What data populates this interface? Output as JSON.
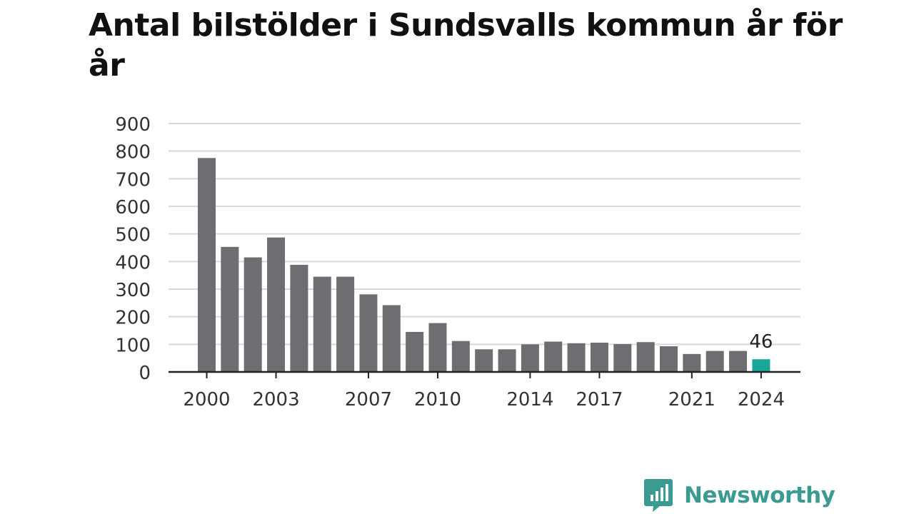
{
  "chart_data": {
    "type": "bar",
    "title": "Antal bilstölder i Sundsvalls kommun år för år",
    "xlabel": "",
    "ylabel": "",
    "categories": [
      "2000",
      "2001",
      "2002",
      "2003",
      "2004",
      "2005",
      "2006",
      "2007",
      "2008",
      "2009",
      "2010",
      "2011",
      "2012",
      "2013",
      "2014",
      "2015",
      "2016",
      "2017",
      "2018",
      "2019",
      "2020",
      "2021",
      "2022",
      "2023",
      "2024"
    ],
    "values": [
      775,
      453,
      415,
      487,
      388,
      345,
      345,
      281,
      242,
      145,
      177,
      112,
      82,
      82,
      100,
      110,
      104,
      106,
      101,
      108,
      93,
      65,
      76,
      76,
      46
    ],
    "x_tick_labels": [
      "2000",
      "2003",
      "2007",
      "2010",
      "2014",
      "2017",
      "2021",
      "2024"
    ],
    "y_ticks": [
      0,
      100,
      200,
      300,
      400,
      500,
      600,
      700,
      800,
      900
    ],
    "ylim": [
      0,
      900
    ],
    "grid": true,
    "legend": "none",
    "highlight": {
      "category": "2024",
      "label": "46"
    },
    "colors": {
      "bar": "#6e6d72",
      "highlight": "#1aa79a",
      "grid": "#d9d9d9",
      "axis": "#222222"
    }
  },
  "brand": {
    "name": "Newsworthy",
    "icon": "bar-chart-speech-bubble-icon",
    "color": "#3b9b93"
  }
}
